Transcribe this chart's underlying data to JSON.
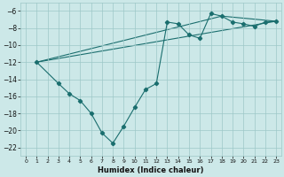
{
  "xlabel": "Humidex (Indice chaleur)",
  "bg_color": "#cce8e8",
  "grid_color": "#9dc8c8",
  "line_color": "#1a6e6e",
  "xlim": [
    -0.5,
    23.5
  ],
  "ylim": [
    -23,
    -5
  ],
  "yticks": [
    -6,
    -8,
    -10,
    -12,
    -14,
    -16,
    -18,
    -20,
    -22
  ],
  "xticks": [
    0,
    1,
    2,
    3,
    4,
    5,
    6,
    7,
    8,
    9,
    10,
    11,
    12,
    13,
    14,
    15,
    16,
    17,
    18,
    19,
    20,
    21,
    22,
    23
  ],
  "series": [
    [
      1,
      -12
    ],
    [
      3,
      -14.5
    ],
    [
      4,
      -15.7
    ],
    [
      5,
      -16.5
    ],
    [
      6,
      -18.0
    ],
    [
      7,
      -20.3
    ],
    [
      8,
      -21.5
    ],
    [
      9,
      -19.5
    ],
    [
      10,
      -17.3
    ],
    [
      11,
      -15.2
    ],
    [
      12,
      -14.5
    ],
    [
      13,
      -7.3
    ],
    [
      14,
      -7.5
    ],
    [
      15,
      -8.8
    ],
    [
      16,
      -9.2
    ],
    [
      17,
      -6.3
    ],
    [
      18,
      -6.6
    ],
    [
      19,
      -7.3
    ],
    [
      20,
      -7.5
    ],
    [
      21,
      -7.8
    ],
    [
      22,
      -7.3
    ],
    [
      23,
      -7.2
    ]
  ],
  "straight_line1": [
    [
      1,
      -12
    ],
    [
      23,
      -7.2
    ]
  ],
  "straight_line2": [
    [
      1,
      -12
    ],
    [
      18,
      -6.6
    ],
    [
      23,
      -7.2
    ]
  ]
}
